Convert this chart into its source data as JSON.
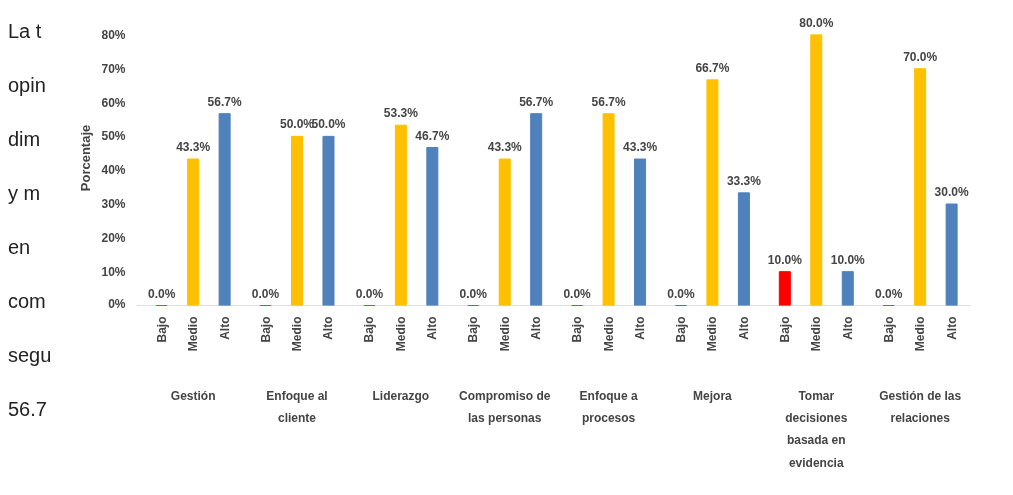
{
  "chart_data": {
    "type": "bar",
    "ylabel": "Porcentaje",
    "categories": [
      "Gestión",
      "Enfoque al\ncliente",
      "Liderazgo",
      "Compromiso de\nlas personas",
      "Enfoque a\nprocesos",
      "Mejora",
      "Tomar\ndecisiones\nbasada en\nevidencia",
      "Gestión de las\nrelaciones"
    ],
    "series": [
      {
        "name": "Bajo",
        "color": "#ff0000",
        "values": [
          0,
          0,
          0,
          0,
          0,
          0,
          10,
          0
        ],
        "value_labels": [
          "0.0%",
          "0.0%",
          "0.0%",
          "0.0%",
          "0.0%",
          "0.0%",
          "10.0%",
          "0.0%"
        ]
      },
      {
        "name": "Medio",
        "color": "#ffc000",
        "values": [
          43.3,
          50,
          53.3,
          43.3,
          56.7,
          66.7,
          80,
          70
        ],
        "value_labels": [
          "43.3%",
          "50.0%",
          "53.3%",
          "43.3%",
          "56.7%",
          "66.7%",
          "80.0%",
          "70.0%"
        ]
      },
      {
        "name": "Alto",
        "color": "#4f81bd",
        "values": [
          56.7,
          50,
          46.7,
          56.7,
          43.3,
          33.3,
          10,
          30
        ],
        "value_labels": [
          "56.7%",
          "50.0%",
          "46.7%",
          "56.7%",
          "43.3%",
          "33.3%",
          "10.0%",
          "30.0%"
        ]
      }
    ],
    "ylim": [
      0,
      80
    ],
    "yticks": [
      {
        "value": 0,
        "label": "0%"
      },
      {
        "value": 10,
        "label": "10%"
      },
      {
        "value": 20,
        "label": "20%"
      },
      {
        "value": 30,
        "label": "30%"
      },
      {
        "value": 40,
        "label": "40%"
      },
      {
        "value": 50,
        "label": "50%"
      },
      {
        "value": 60,
        "label": "60%"
      },
      {
        "value": 70,
        "label": "70%"
      },
      {
        "value": 80,
        "label": "80%"
      }
    ],
    "grid": false,
    "annotations": [
      "La t",
      "opin",
      "dim",
      "y m",
      "en",
      "com",
      "segu",
      "56.7"
    ]
  }
}
